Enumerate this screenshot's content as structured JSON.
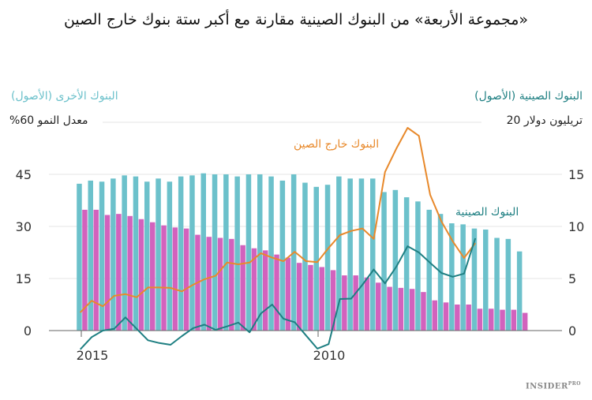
{
  "title": "«مجموعة الأربعة» من البنوك الصينية مقارنة مع أكبر ستة بنوك خارج الصين",
  "logo": {
    "main": "INSIDER",
    "sub": "PRO"
  },
  "chart_data": {
    "type": "bar+line",
    "title": "«مجموعة الأربعة» من البنوك الصينية مقارنة مع أكبر ستة بنوك خارج الصين",
    "left_axis": {
      "label_series": "البنوك الأخرى (الأصول)",
      "unit_label": "معدل النمو 60%",
      "ticks": [
        "45",
        "30",
        "15",
        "0"
      ],
      "range": [
        0,
        60
      ],
      "unit": "%"
    },
    "right_axis": {
      "label_series": "البنوك الصينية (الأصول)",
      "unit_label": "تريليون دولار 20",
      "ticks": [
        "15",
        "10",
        "5",
        "0"
      ],
      "range": [
        0,
        20
      ],
      "unit": "trillion USD"
    },
    "x_ticks": [
      "2015",
      "2010"
    ],
    "x_reversed": true,
    "grid": true,
    "colors": {
      "other_bars": "#6cc1cb",
      "chinese_bars": "#d262bd",
      "outside_line": "#e8892b",
      "chinese_line": "#1e7f82"
    },
    "annotations": {
      "outside_line": "البنوك خارج الصين",
      "chinese_line": "البنوك الصينية"
    },
    "bars_other_assets": [
      14.1,
      14.4,
      14.3,
      14.6,
      14.9,
      14.8,
      14.3,
      14.6,
      14.3,
      14.8,
      14.9,
      15.1,
      15.0,
      15.0,
      14.8,
      15.0,
      15.0,
      14.8,
      14.4,
      15.0,
      14.2,
      13.8,
      14.0,
      14.8,
      14.6,
      14.6,
      14.6,
      13.3,
      13.5,
      12.8,
      12.4,
      11.6,
      11.2,
      10.3,
      10.2,
      9.8,
      9.7,
      8.9,
      8.8,
      7.6
    ],
    "bars_chinese_assets": [
      11.6,
      11.6,
      11.1,
      11.2,
      11.0,
      10.7,
      10.4,
      10.1,
      9.9,
      9.8,
      9.2,
      9.0,
      8.9,
      8.8,
      8.2,
      7.9,
      7.7,
      7.3,
      7.0,
      6.5,
      6.3,
      6.1,
      5.8,
      5.3,
      5.3,
      5.1,
      4.6,
      4.2,
      4.1,
      4.0,
      3.7,
      2.9,
      2.7,
      2.5,
      2.5,
      2.1,
      2.1,
      2.0,
      2.0,
      1.7
    ],
    "line_outside_growth": [
      5.2,
      8.6,
      7.0,
      10.0,
      10.5,
      9.6,
      12.4,
      12.4,
      12.3,
      11.3,
      13.2,
      14.8,
      15.8,
      19.6,
      19.1,
      19.6,
      22.3,
      21.0,
      20.0,
      22.7,
      20.0,
      19.7,
      23.8,
      27.5,
      28.7,
      29.4,
      26.4,
      45.7,
      52.4,
      58.4,
      56.1,
      39.1,
      31.4,
      25.7,
      20.9,
      25.2
    ],
    "line_chinese_growth": [
      -5.4,
      -1.9,
      0.0,
      0.5,
      3.8,
      0.5,
      -2.8,
      -3.6,
      -4.1,
      -1.6,
      0.7,
      1.7,
      0.2,
      1.2,
      2.3,
      -0.5,
      4.9,
      7.5,
      3.4,
      2.4,
      -1.4,
      -5.2,
      -3.9,
      9.1,
      9.2,
      13.2,
      17.6,
      13.6,
      18.4,
      24.3,
      22.5,
      19.5,
      16.6,
      15.5,
      16.4,
      26.6
    ]
  }
}
